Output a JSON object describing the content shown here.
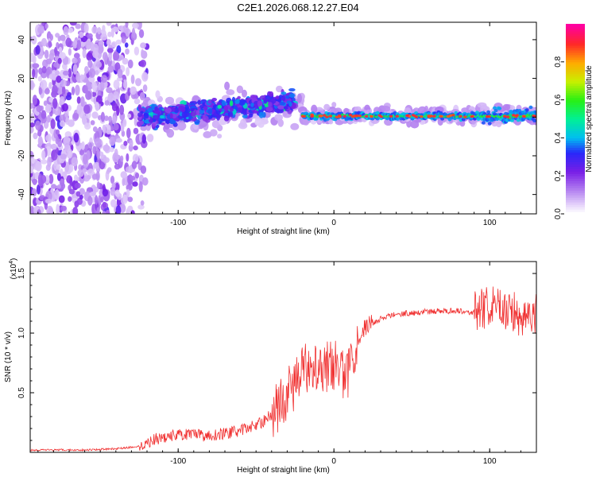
{
  "title": "C2E1.2026.068.12.27.E04",
  "chart_data": [
    {
      "type": "heatmap",
      "xlabel": "Height of straight line (km)",
      "ylabel": "Frequency (Hz)",
      "xlim": [
        -195,
        130
      ],
      "ylim": [
        -50,
        49
      ],
      "xticks": [
        -100,
        0,
        100
      ],
      "yticks": [
        -40,
        -20,
        0,
        20,
        40
      ],
      "colorbar": {
        "label": "Normalized spectral amplitude",
        "range": [
          0.0,
          1.0
        ],
        "ticks": [
          0.0,
          0.2,
          0.4,
          0.6,
          0.8
        ]
      }
    },
    {
      "type": "line",
      "xlabel": "Height of straight line (km)",
      "ylabel": "SNR (10 * v/v)",
      "yscale_label": "(x10",
      "yscale_exp": "4",
      "xlim": [
        -195,
        130
      ],
      "ylim": [
        0.0,
        1.6
      ],
      "xticks": [
        -100,
        0,
        100
      ],
      "yticks": [
        0.5,
        1.0,
        1.5
      ],
      "color": "#f03030",
      "series": [
        {
          "name": "SNR",
          "x": [
            -195,
            -180,
            -160,
            -140,
            -125,
            -115,
            -100,
            -80,
            -60,
            -45,
            -35,
            -25,
            -15,
            -5,
            0,
            5,
            8,
            12,
            20,
            30,
            40,
            60,
            80,
            90,
            95,
            100,
            110,
            120,
            130
          ],
          "y": [
            0.02,
            0.02,
            0.02,
            0.03,
            0.05,
            0.11,
            0.15,
            0.14,
            0.18,
            0.26,
            0.4,
            0.58,
            0.76,
            0.72,
            0.74,
            0.68,
            0.6,
            0.85,
            1.05,
            1.12,
            1.16,
            1.18,
            1.19,
            1.17,
            1.2,
            1.22,
            1.2,
            1.15,
            1.17
          ]
        }
      ]
    }
  ]
}
